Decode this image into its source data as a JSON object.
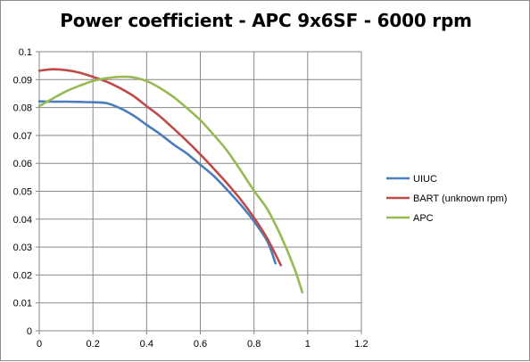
{
  "chart_data": {
    "type": "line",
    "title": "Power coefficient - APC 9x6SF - 6000 rpm",
    "xlabel": "",
    "ylabel": "",
    "xlim": [
      0,
      1.2
    ],
    "ylim": [
      0,
      0.1
    ],
    "x_ticks": [
      "0",
      "0.2",
      "0.4",
      "0.6",
      "0.8",
      "1",
      "1.2"
    ],
    "y_ticks": [
      "0",
      "0.01",
      "0.02",
      "0.03",
      "0.04",
      "0.05",
      "0.06",
      "0.07",
      "0.08",
      "0.09",
      "0.1"
    ],
    "grid": "vertical and horizontal major gridlines",
    "legend_position": "right",
    "series": [
      {
        "name": "UIUC",
        "color": "#4a7ebb",
        "points": [
          [
            0.0,
            0.0822
          ],
          [
            0.05,
            0.0821
          ],
          [
            0.1,
            0.0821
          ],
          [
            0.15,
            0.082
          ],
          [
            0.2,
            0.0819
          ],
          [
            0.25,
            0.0816
          ],
          [
            0.3,
            0.0798
          ],
          [
            0.35,
            0.0772
          ],
          [
            0.4,
            0.0738
          ],
          [
            0.45,
            0.0705
          ],
          [
            0.5,
            0.0668
          ],
          [
            0.55,
            0.0635
          ],
          [
            0.6,
            0.0595
          ],
          [
            0.65,
            0.0555
          ],
          [
            0.7,
            0.0505
          ],
          [
            0.75,
            0.0452
          ],
          [
            0.8,
            0.0392
          ],
          [
            0.85,
            0.032
          ],
          [
            0.88,
            0.0242
          ]
        ]
      },
      {
        "name": "BART (unknown rpm)",
        "color": "#be4b48",
        "points": [
          [
            0.0,
            0.0932
          ],
          [
            0.05,
            0.0937
          ],
          [
            0.1,
            0.0934
          ],
          [
            0.15,
            0.0925
          ],
          [
            0.2,
            0.091
          ],
          [
            0.25,
            0.0893
          ],
          [
            0.3,
            0.087
          ],
          [
            0.35,
            0.0842
          ],
          [
            0.4,
            0.0805
          ],
          [
            0.45,
            0.0768
          ],
          [
            0.5,
            0.0725
          ],
          [
            0.55,
            0.068
          ],
          [
            0.6,
            0.0632
          ],
          [
            0.65,
            0.0581
          ],
          [
            0.7,
            0.0528
          ],
          [
            0.75,
            0.0471
          ],
          [
            0.8,
            0.0405
          ],
          [
            0.85,
            0.033
          ],
          [
            0.9,
            0.0235
          ]
        ]
      },
      {
        "name": "APC",
        "color": "#98b954",
        "points": [
          [
            0.0,
            0.0805
          ],
          [
            0.05,
            0.0832
          ],
          [
            0.1,
            0.0858
          ],
          [
            0.15,
            0.0878
          ],
          [
            0.2,
            0.0895
          ],
          [
            0.25,
            0.0905
          ],
          [
            0.3,
            0.091
          ],
          [
            0.35,
            0.0908
          ],
          [
            0.4,
            0.0895
          ],
          [
            0.45,
            0.087
          ],
          [
            0.5,
            0.0838
          ],
          [
            0.55,
            0.0798
          ],
          [
            0.6,
            0.0755
          ],
          [
            0.65,
            0.0702
          ],
          [
            0.7,
            0.0645
          ],
          [
            0.75,
            0.0575
          ],
          [
            0.8,
            0.0502
          ],
          [
            0.85,
            0.0435
          ],
          [
            0.9,
            0.034
          ],
          [
            0.95,
            0.0225
          ],
          [
            0.98,
            0.0138
          ]
        ]
      }
    ]
  }
}
